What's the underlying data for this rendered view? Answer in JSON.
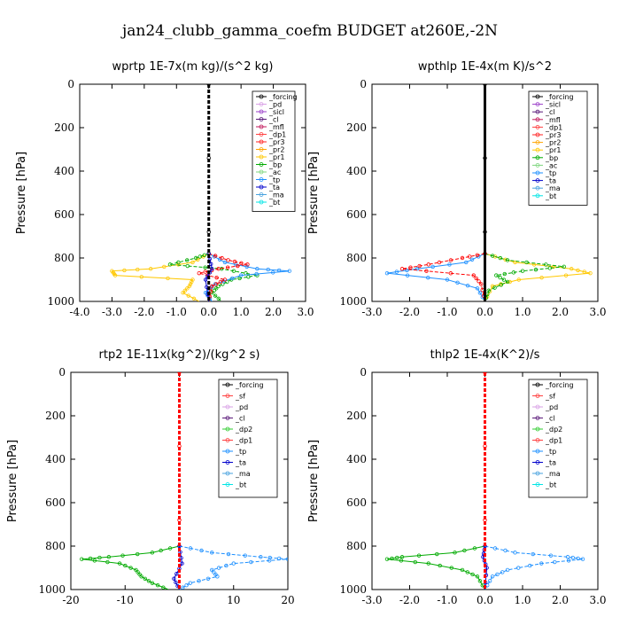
{
  "suptitle": "jan24_clubb_gamma_coefm  BUDGET at260E,-2N",
  "chart_data": [
    {
      "type": "line",
      "title": "wprtp  1E-7x(m kg)/(s^2 kg)",
      "ylabel": "Pressure [hPa]",
      "xlabel": "",
      "xlim": [
        -4,
        3
      ],
      "ylim": [
        1000,
        0
      ],
      "xticks": [
        "-4.0",
        "-3.0",
        "-2.0",
        "-1.0",
        "0.0",
        "1.0",
        "2.0",
        "3.0"
      ],
      "yticks": [
        "0",
        "200",
        "400",
        "600",
        "800",
        "1000"
      ],
      "legend_position": "top-right",
      "legend": [
        "_forcing",
        "_pd",
        "_sicl",
        "_cl",
        "_mfl",
        "_dp1",
        "_pr3",
        "_pr2",
        "_pr1",
        "_bp",
        "_ac",
        "_tp",
        "_ta",
        "_ma",
        "_bt"
      ],
      "series": [
        {
          "name": "_pr1",
          "color": "#ffc800",
          "y": [
            780,
            820,
            850,
            860,
            880,
            900,
            930,
            960,
            1000
          ],
          "x": [
            0,
            -0.5,
            -1.8,
            -3.0,
            -2.9,
            -0.5,
            -0.6,
            -0.8,
            -0.3
          ]
        },
        {
          "name": "_bp",
          "color": "#00aa00",
          "y": [
            780,
            800,
            830,
            850,
            880,
            900,
            930,
            960,
            1000
          ],
          "x": [
            0,
            -0.4,
            -1.2,
            0.4,
            1.5,
            0.7,
            0.3,
            0.1,
            0.4
          ]
        },
        {
          "name": "_tp",
          "color": "#1e90ff",
          "y": [
            780,
            820,
            850,
            860,
            880,
            920,
            960,
            1000
          ],
          "x": [
            0,
            0.5,
            1.5,
            2.5,
            1.0,
            0.2,
            -0.1,
            0.1
          ]
        },
        {
          "name": "_dp1",
          "color": "#ff0000",
          "y": [
            780,
            810,
            830,
            850,
            870,
            900,
            930,
            1000
          ],
          "x": [
            0,
            0.6,
            1.2,
            0.3,
            -0.3,
            0.5,
            0.1,
            0
          ]
        },
        {
          "name": "_ta",
          "color": "#0000cc",
          "y": [
            780,
            850,
            900,
            1000
          ],
          "x": [
            0,
            0.1,
            -0.1,
            0
          ]
        },
        {
          "name": "_forcing",
          "color": "#000000",
          "y": [
            0,
            1000
          ],
          "x": [
            0,
            0
          ]
        }
      ]
    },
    {
      "type": "line",
      "title": "wpthlp  1E-4x(m K)/s^2",
      "ylabel": "Pressure [hPa]",
      "xlabel": "",
      "xlim": [
        -3,
        3
      ],
      "ylim": [
        1000,
        0
      ],
      "xticks": [
        "-3.0",
        "-2.0",
        "-1.0",
        "0.0",
        "1.0",
        "2.0",
        "3.0"
      ],
      "yticks": [
        "0",
        "200",
        "400",
        "600",
        "800",
        "1000"
      ],
      "legend_position": "top-right",
      "legend": [
        "_forcing",
        "_sicl",
        "_cl",
        "_mfl",
        "_dp1",
        "_pr3",
        "_pr2",
        "_pr1",
        "_bp",
        "_ac",
        "_tp",
        "_ta",
        "_ma",
        "_bt"
      ],
      "series": [
        {
          "name": "_pr1",
          "color": "#ffc800",
          "y": [
            780,
            820,
            850,
            870,
            900,
            930,
            1000
          ],
          "x": [
            0,
            0.8,
            2.3,
            2.8,
            0.9,
            0.2,
            0
          ]
        },
        {
          "name": "_bp",
          "color": "#00aa00",
          "y": [
            780,
            810,
            840,
            860,
            880,
            910,
            950,
            1000
          ],
          "x": [
            0,
            0.6,
            2.1,
            1.0,
            0.3,
            0.6,
            0.1,
            0
          ]
        },
        {
          "name": "_tp",
          "color": "#1e90ff",
          "y": [
            780,
            820,
            850,
            870,
            900,
            940,
            1000
          ],
          "x": [
            0,
            -0.5,
            -1.8,
            -2.6,
            -1.0,
            -0.2,
            0
          ]
        },
        {
          "name": "_dp1",
          "color": "#ff0000",
          "y": [
            780,
            800,
            830,
            850,
            880,
            920,
            1000
          ],
          "x": [
            0,
            -0.6,
            -1.5,
            -2.2,
            -0.3,
            -0.1,
            0
          ]
        },
        {
          "name": "_forcing",
          "color": "#000000",
          "y": [
            0,
            1000
          ],
          "x": [
            0,
            0
          ]
        }
      ]
    },
    {
      "type": "line",
      "title": "rtp2  1E-11x(kg^2)/(kg^2 s)",
      "ylabel": "Pressure [hPa]",
      "xlabel": "",
      "xlim": [
        -20,
        20
      ],
      "ylim": [
        1000,
        0
      ],
      "xticks": [
        "-20",
        "-10",
        "0",
        "10",
        "20"
      ],
      "yticks": [
        "0",
        "200",
        "400",
        "600",
        "800",
        "1000"
      ],
      "legend_position": "top-right",
      "legend": [
        "_forcing",
        "_sf",
        "_pd",
        "_cl",
        "_dp2",
        "_dp1",
        "_tp",
        "_ta",
        "_ma",
        "_bt"
      ],
      "series": [
        {
          "name": "_dp2",
          "color": "#00aa00",
          "y": [
            800,
            830,
            850,
            860,
            880,
            910,
            940,
            970,
            1000
          ],
          "x": [
            0,
            -5,
            -13,
            -18,
            -11,
            -8,
            -7,
            -5,
            -2
          ]
        },
        {
          "name": "_tp",
          "color": "#1e90ff",
          "y": [
            800,
            830,
            850,
            860,
            880,
            910,
            940,
            970,
            1000
          ],
          "x": [
            0,
            6,
            15,
            20,
            10,
            6,
            7,
            2,
            0
          ]
        },
        {
          "name": "_ta",
          "color": "#0000cc",
          "y": [
            800,
            880,
            950,
            1000
          ],
          "x": [
            0,
            0.5,
            -1,
            0
          ]
        },
        {
          "name": "_forcing",
          "color": "#ff0000",
          "y": [
            0,
            1000
          ],
          "x": [
            0,
            0
          ]
        }
      ]
    },
    {
      "type": "line",
      "title": "thlp2  1E-4x(K^2)/s",
      "ylabel": "Pressure [hPa]",
      "xlabel": "",
      "xlim": [
        -3,
        3
      ],
      "ylim": [
        1000,
        0
      ],
      "xticks": [
        "-3.0",
        "-2.0",
        "-1.0",
        "0.0",
        "1.0",
        "2.0",
        "3.0"
      ],
      "yticks": [
        "0",
        "200",
        "400",
        "600",
        "800",
        "1000"
      ],
      "legend_position": "top-right",
      "legend": [
        "_forcing",
        "_sf",
        "_pd",
        "_cl",
        "_dp2",
        "_dp1",
        "_tp",
        "_ta",
        "_ma",
        "_bt"
      ],
      "series": [
        {
          "name": "_dp2",
          "color": "#00aa00",
          "y": [
            800,
            830,
            850,
            860,
            880,
            910,
            940,
            1000
          ],
          "x": [
            0,
            -0.8,
            -2.2,
            -2.6,
            -1.5,
            -0.6,
            -0.2,
            0
          ]
        },
        {
          "name": "_tp",
          "color": "#1e90ff",
          "y": [
            800,
            830,
            850,
            860,
            880,
            910,
            940,
            1000
          ],
          "x": [
            0,
            0.8,
            2.2,
            2.6,
            1.5,
            0.6,
            0.2,
            0
          ]
        },
        {
          "name": "_ta",
          "color": "#0000cc",
          "y": [
            800,
            850,
            900,
            1000
          ],
          "x": [
            0,
            -0.05,
            0.05,
            0
          ]
        },
        {
          "name": "_forcing",
          "color": "#ff0000",
          "y": [
            0,
            1000
          ],
          "x": [
            0,
            0
          ]
        }
      ]
    }
  ],
  "legend_colors": {
    "_forcing": "#000000",
    "_pd": "#d9a0e6",
    "_sicl": "#9b3fc9",
    "_cl": "#5a1a7a",
    "_mfl": "#c2185b",
    "_dp1": "#ff4040",
    "_pr3": "#ff2020",
    "_pr2": "#ffa500",
    "_pr1": "#ffc800",
    "_bp": "#00aa00",
    "_ac": "#7fd67f",
    "_tp": "#1e90ff",
    "_ta": "#0000cc",
    "_ma": "#4aa3df",
    "_bt": "#00e5e5",
    "_sf": "#ff4040",
    "_dp2": "#32cd32"
  }
}
